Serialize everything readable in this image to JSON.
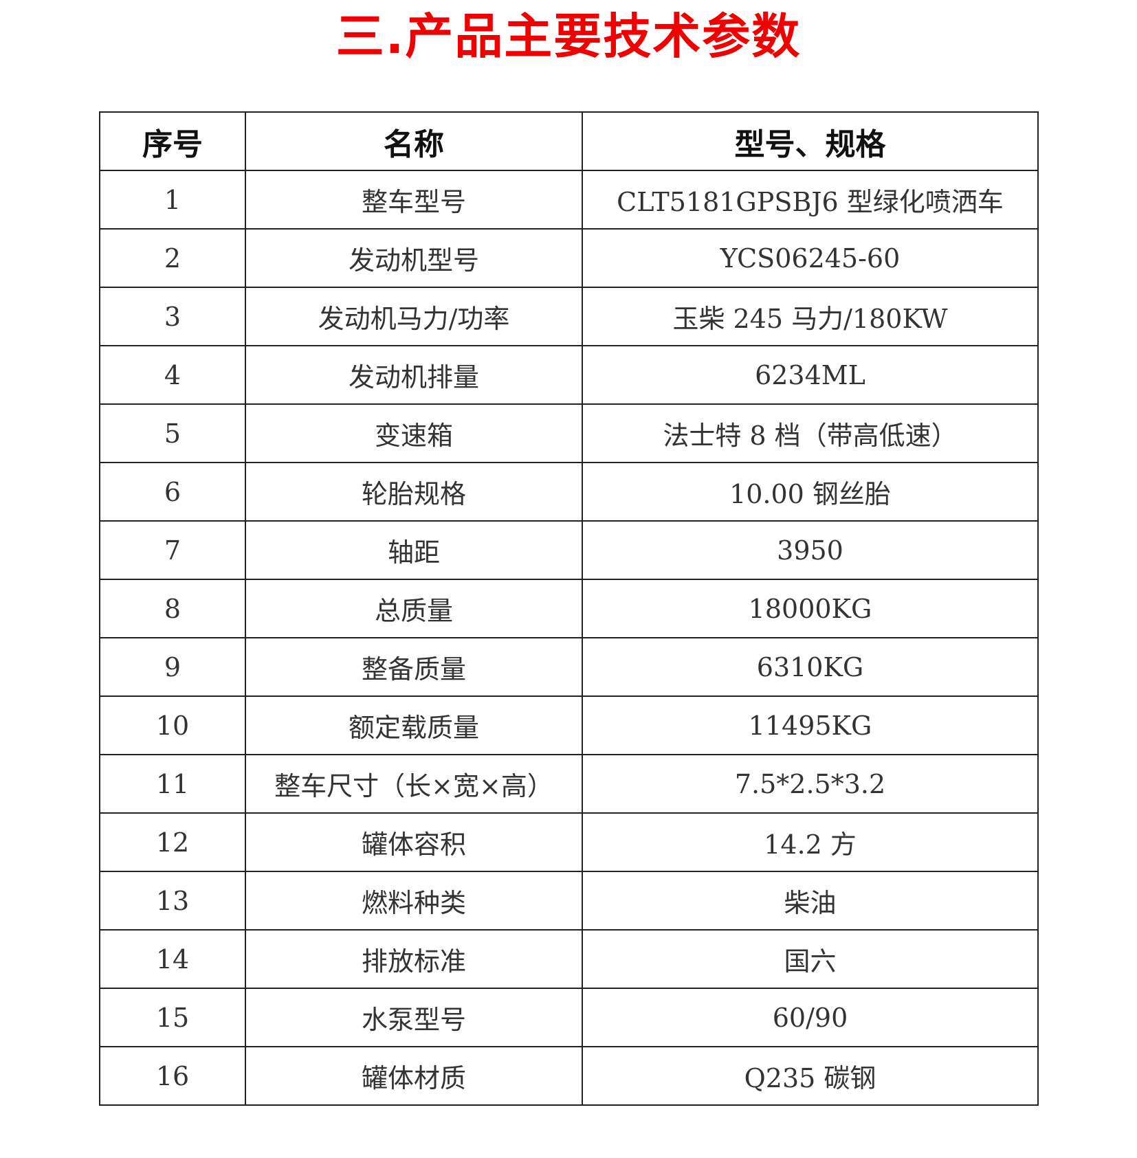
{
  "title": "三.产品主要技术参数",
  "table": {
    "headers": [
      "序号",
      "名称",
      "型号、规格"
    ],
    "rows": [
      [
        "1",
        "整车型号",
        "CLT5181GPSBJ6 型绿化喷洒车"
      ],
      [
        "2",
        "发动机型号",
        "YCS06245-60"
      ],
      [
        "3",
        "发动机马力/功率",
        "玉柴 245 马力/180KW"
      ],
      [
        "4",
        "发动机排量",
        "6234ML"
      ],
      [
        "5",
        "变速箱",
        "法士特 8 档（带高低速）"
      ],
      [
        "6",
        "轮胎规格",
        "10.00 钢丝胎"
      ],
      [
        "7",
        "轴距",
        "3950"
      ],
      [
        "8",
        "总质量",
        "18000KG"
      ],
      [
        "9",
        "整备质量",
        "6310KG"
      ],
      [
        "10",
        "额定载质量",
        "11495KG"
      ],
      [
        "11",
        "整车尺寸（长×宽×高）",
        "7.5*2.5*3.2"
      ],
      [
        "12",
        "罐体容积",
        "14.2 方"
      ],
      [
        "13",
        "燃料种类",
        "柴油"
      ],
      [
        "14",
        "排放标准",
        "国六"
      ],
      [
        "15",
        "水泵型号",
        "60/90"
      ],
      [
        "16",
        "罐体材质",
        "Q235 碳钢"
      ]
    ]
  }
}
